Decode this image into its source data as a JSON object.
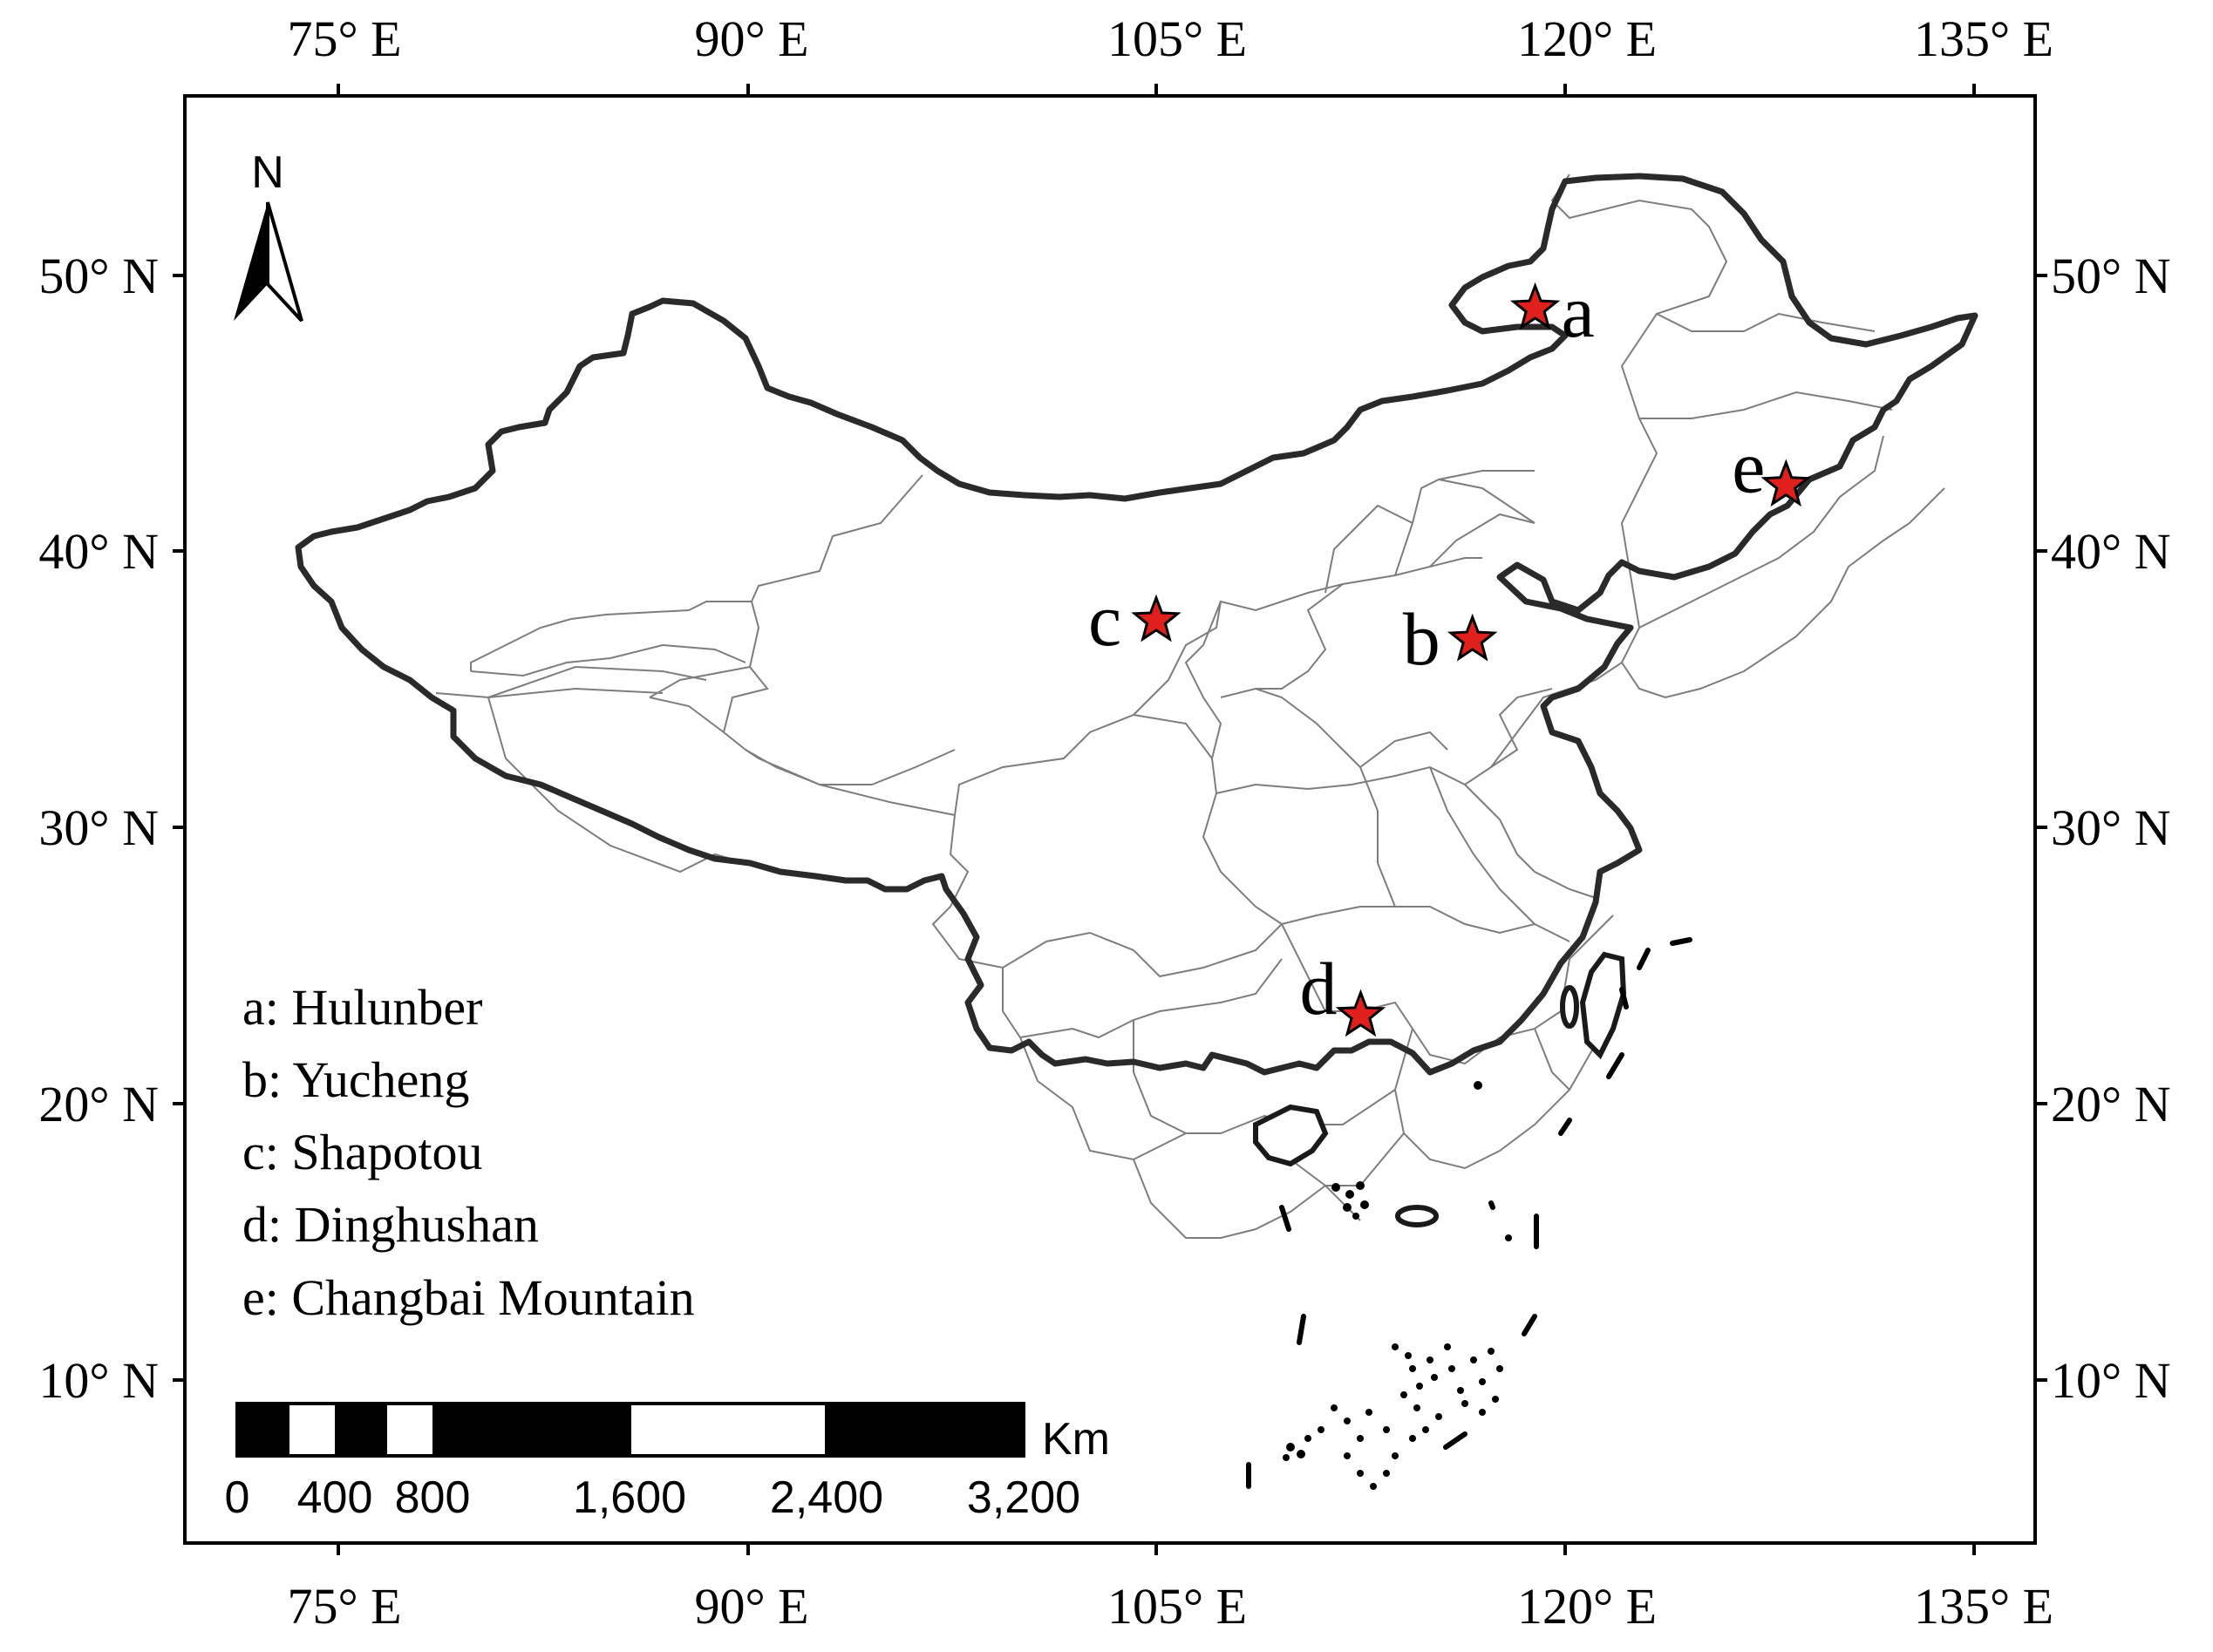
{
  "axes": {
    "top": [
      "75° E",
      "90° E",
      "105° E",
      "120° E",
      "135° E"
    ],
    "bottom": [
      "75° E",
      "90° E",
      "105° E",
      "120° E",
      "135° E"
    ],
    "left": [
      "50° N",
      "40° N",
      "30° N",
      "20° N",
      "10° N"
    ],
    "right": [
      "50° N",
      "40° N",
      "30° N",
      "20° N",
      "10° N"
    ]
  },
  "north_arrow": {
    "letter": "N"
  },
  "sites": [
    {
      "letter": "a",
      "name": "Hulunber",
      "lon": 118.9,
      "lat": 48.8
    },
    {
      "letter": "b",
      "name": "Yucheng",
      "lon": 116.6,
      "lat": 36.8
    },
    {
      "letter": "c",
      "name": "Shapotou",
      "lon": 105.0,
      "lat": 37.5
    },
    {
      "letter": "d",
      "name": "Dinghushan",
      "lon": 112.5,
      "lat": 23.2
    },
    {
      "letter": "e",
      "name": "Changbai Mountain",
      "lon": 128.1,
      "lat": 42.4
    }
  ],
  "legend": [
    "a: Hulunber",
    "b: Yucheng",
    "c: Shapotou",
    "d: Dinghushan",
    "e: Changbai Mountain"
  ],
  "scale_bar": {
    "unit": "Km",
    "labels": [
      "0",
      "400",
      "800",
      "1,600",
      "2,400",
      "3,200"
    ]
  },
  "colors": {
    "marker": "#e0201c",
    "outline": "#2a2a2a",
    "province": "#7d7d7d"
  }
}
